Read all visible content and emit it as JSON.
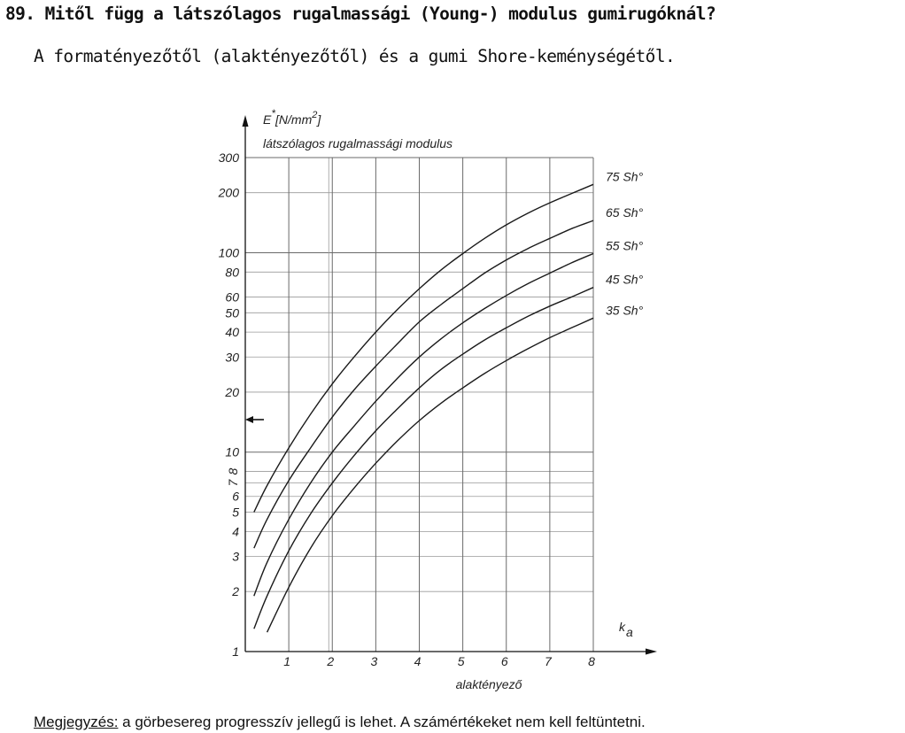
{
  "question": {
    "number": "89.",
    "text": "Mitől függ a látszólagos rugalmassági (Young-) modulus gumirugóknál?"
  },
  "answer": {
    "text": "A formatényezőtől (alaktényezőtől) és a gumi Shore-keménységétől."
  },
  "note": {
    "lead": "Megjegyzés:",
    "text": " a görbesereg progresszív jellegű is lehet. A számértékeket nem kell feltüntetni."
  },
  "chart_data": {
    "type": "line",
    "ylabel_symbol": "E",
    "ylabel_superscript": "*",
    "ylabel_unit": "[N/mm",
    "ylabel_unit_exp": "2",
    "ylabel_unit_close": "]",
    "ylabel_desc": "látszólagos rugalmassági modulus",
    "xlabel_symbol": "k",
    "xlabel_subscript": "a",
    "xlabel_desc": "alaktényező",
    "x_scale": "linear",
    "y_scale": "log",
    "xlim": [
      0,
      8
    ],
    "ylim": [
      1,
      300
    ],
    "grid": true,
    "x_ticks": [
      "1",
      "2",
      "3",
      "4",
      "5",
      "6",
      "7",
      "8"
    ],
    "y_ticks": [
      "1",
      "2",
      "3",
      "4",
      "5",
      "6",
      "7",
      "8",
      "10",
      "20",
      "30",
      "40",
      "50",
      "60",
      "80",
      "100",
      "200",
      "300"
    ],
    "series": [
      {
        "name": "75 Sh°",
        "x": [
          0.2,
          0.5,
          1,
          1.5,
          2,
          2.5,
          3,
          3.5,
          4,
          4.5,
          5,
          5.5,
          6,
          6.5,
          7,
          7.5,
          8
        ],
        "y": [
          5.0,
          6.8,
          10.5,
          15.5,
          22,
          30,
          40,
          52,
          66,
          82,
          99,
          118,
          138,
          158,
          178,
          198,
          220
        ]
      },
      {
        "name": "65 Sh°",
        "x": [
          0.2,
          0.5,
          1,
          1.5,
          2,
          2.5,
          3,
          3.5,
          4,
          4.5,
          5,
          5.5,
          6,
          6.5,
          7,
          7.5,
          8
        ],
        "y": [
          3.3,
          4.6,
          7.2,
          10.5,
          15,
          20.5,
          27,
          35,
          45,
          55,
          66,
          79,
          92,
          105,
          118,
          132,
          145
        ]
      },
      {
        "name": "55 Sh°",
        "x": [
          0.2,
          0.5,
          1,
          1.5,
          2,
          2.5,
          3,
          3.5,
          4,
          4.5,
          5,
          5.5,
          6,
          6.5,
          7,
          7.5,
          8
        ],
        "y": [
          1.9,
          2.8,
          4.6,
          7,
          10,
          13.5,
          18,
          23.5,
          30,
          37,
          44.5,
          52.5,
          61,
          70,
          79,
          89,
          99
        ]
      },
      {
        "name": "45 Sh°",
        "x": [
          0.2,
          0.5,
          1,
          1.5,
          2,
          2.5,
          3,
          3.5,
          4,
          4.5,
          5,
          5.5,
          6,
          6.5,
          7,
          7.5,
          8
        ],
        "y": [
          1.3,
          1.9,
          3.2,
          4.9,
          7,
          9.6,
          12.8,
          16.5,
          21,
          26,
          31,
          36.5,
          42,
          48,
          54,
          60,
          67
        ]
      },
      {
        "name": "35 Sh°",
        "x": [
          0.5,
          1,
          1.5,
          2,
          2.5,
          3,
          3.5,
          4,
          4.5,
          5,
          5.5,
          6,
          6.5,
          7,
          7.5,
          8
        ],
        "y": [
          1.25,
          2.1,
          3.3,
          4.8,
          6.6,
          8.8,
          11.4,
          14.4,
          17.6,
          21,
          24.8,
          28.8,
          33,
          37.5,
          42,
          47
        ]
      }
    ]
  }
}
